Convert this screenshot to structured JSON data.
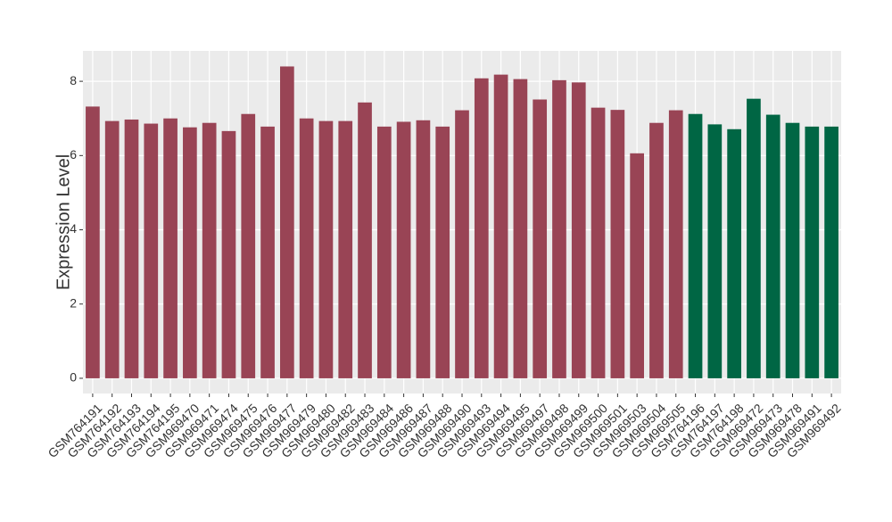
{
  "chart_data": {
    "type": "bar",
    "y_label": "Expression Level",
    "categories": [
      "GSM764191",
      "GSM764192",
      "GSM764193",
      "GSM764194",
      "GSM764195",
      "GSM969470",
      "GSM969471",
      "GSM969474",
      "GSM969475",
      "GSM969476",
      "GSM969477",
      "GSM969479",
      "GSM969480",
      "GSM969482",
      "GSM969483",
      "GSM969484",
      "GSM969486",
      "GSM969487",
      "GSM969488",
      "GSM969490",
      "GSM969493",
      "GSM969494",
      "GSM969495",
      "GSM969497",
      "GSM969498",
      "GSM969499",
      "GSM969500",
      "GSM969501",
      "GSM969503",
      "GSM969504",
      "GSM969505",
      "GSM764196",
      "GSM764197",
      "GSM764198",
      "GSM969472",
      "GSM969473",
      "GSM969478",
      "GSM969491",
      "GSM969492"
    ],
    "values": [
      7.32,
      6.93,
      6.97,
      6.86,
      7.0,
      6.76,
      6.88,
      6.66,
      7.12,
      6.78,
      8.4,
      7.0,
      6.93,
      6.93,
      7.43,
      6.78,
      6.91,
      6.95,
      6.78,
      7.22,
      8.08,
      8.18,
      8.06,
      7.51,
      8.03,
      7.97,
      7.29,
      7.23,
      6.06,
      6.88,
      7.22,
      7.12,
      6.84,
      6.71,
      7.53,
      7.1,
      6.88,
      6.78,
      6.78
    ],
    "colors": [
      "#994455",
      "#994455",
      "#994455",
      "#994455",
      "#994455",
      "#994455",
      "#994455",
      "#994455",
      "#994455",
      "#994455",
      "#994455",
      "#994455",
      "#994455",
      "#994455",
      "#994455",
      "#994455",
      "#994455",
      "#994455",
      "#994455",
      "#994455",
      "#994455",
      "#994455",
      "#994455",
      "#994455",
      "#994455",
      "#994455",
      "#994455",
      "#994455",
      "#994455",
      "#994455",
      "#994455",
      "#006644",
      "#006644",
      "#006644",
      "#006644",
      "#006644",
      "#006644",
      "#006644",
      "#006644"
    ],
    "ylim": [
      -0.41,
      8.82
    ],
    "yticks": [
      0,
      2,
      4,
      6,
      8
    ],
    "grid": true
  }
}
